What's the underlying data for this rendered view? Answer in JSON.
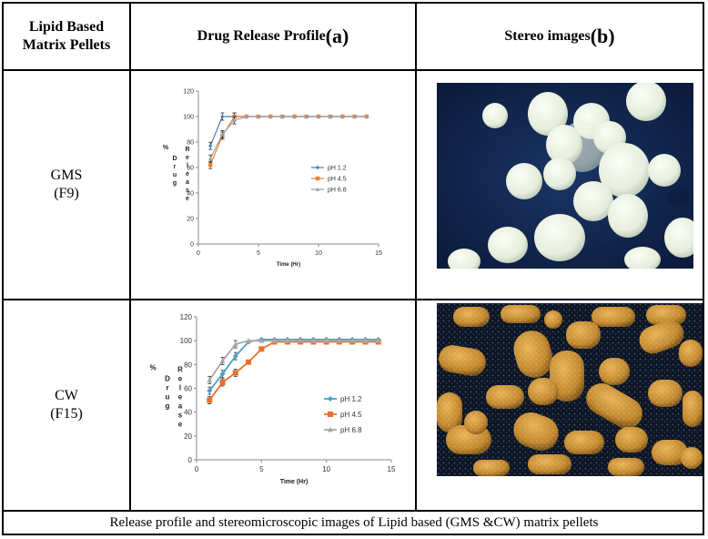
{
  "table": {
    "headers": {
      "col1_line1": "Lipid Based",
      "col1_line2": "Matrix Pellets",
      "col2_text": "Drug Release Profile ",
      "col2_letter": "(a)",
      "col3_text": "Stereo images ",
      "col3_letter": "(b)"
    },
    "rows": [
      {
        "name_line1": "GMS",
        "name_line2": "(F9)"
      },
      {
        "name_line1": "CW",
        "name_line2": "(F15)"
      }
    ],
    "caption": "Release profile and stereomicroscopic images of Lipid based (GMS &CW) matrix pellets"
  },
  "chart_data": [
    {
      "type": "line",
      "xlabel": "Time (Hr)",
      "ylabel": "% Drug Release",
      "ylabel_parts": [
        "%",
        "D r u g",
        "R e l e a s e"
      ],
      "xlim": [
        0,
        15
      ],
      "ylim": [
        0,
        120
      ],
      "xticks": [
        0,
        5,
        10,
        15
      ],
      "yticks": [
        0,
        20,
        40,
        60,
        80,
        100,
        120
      ],
      "legend_position": "right",
      "x": [
        1,
        2,
        3,
        4,
        5,
        6,
        7,
        8,
        9,
        10,
        11,
        12,
        13,
        14
      ],
      "series": [
        {
          "name": "pH 1.2",
          "color": "#4a7ebb",
          "marker": "diamond",
          "values": [
            77,
            100,
            100,
            100,
            100,
            100,
            100,
            100,
            100,
            100,
            100,
            100,
            100,
            100
          ]
        },
        {
          "name": "pH 4.5",
          "color": "#e8823a",
          "marker": "square",
          "values": [
            62,
            85,
            100,
            100,
            100,
            100,
            100,
            100,
            100,
            100,
            100,
            100,
            100,
            100
          ]
        },
        {
          "name": "pH 6.8",
          "color": "#a0a0a0",
          "marker": "triangle",
          "values": [
            67,
            86,
            97,
            100,
            100,
            100,
            100,
            100,
            100,
            100,
            100,
            100,
            100,
            100
          ]
        }
      ]
    },
    {
      "type": "line",
      "xlabel": "Time (Hr)",
      "ylabel": "% Drug Release",
      "ylabel_parts": [
        "%",
        "D r u g",
        "R e l e a s e"
      ],
      "xlim": [
        0,
        15
      ],
      "ylim": [
        0,
        120
      ],
      "xticks": [
        0,
        5,
        10,
        15
      ],
      "yticks": [
        0,
        20,
        40,
        60,
        80,
        100,
        120
      ],
      "legend_position": "right",
      "x": [
        1,
        2,
        3,
        4,
        5,
        6,
        7,
        8,
        9,
        10,
        11,
        12,
        13,
        14
      ],
      "series": [
        {
          "name": "pH 1.2",
          "color": "#4a9fc8",
          "marker": "diamond",
          "values": [
            58,
            72,
            87,
            99,
            101,
            101,
            101,
            101,
            101,
            101,
            101,
            101,
            101,
            101
          ]
        },
        {
          "name": "pH 4.5",
          "color": "#e8702a",
          "marker": "square",
          "values": [
            50,
            65,
            73,
            82,
            93,
            99,
            99,
            99,
            99,
            99,
            99,
            99,
            99,
            99
          ]
        },
        {
          "name": "pH 6.8",
          "color": "#a8a8a8",
          "marker": "triangle",
          "values": [
            67,
            83,
            97,
            100,
            100,
            100,
            100,
            100,
            100,
            100,
            100,
            100,
            100,
            100
          ]
        }
      ]
    }
  ],
  "photos": [
    {
      "name": "GMS pellets stereo image",
      "background": "#0d1f44",
      "pellet_color": "#eef3e6"
    },
    {
      "name": "CW pellets stereo image",
      "background": "#0b1424",
      "pellet_color": "#c9913a"
    }
  ]
}
